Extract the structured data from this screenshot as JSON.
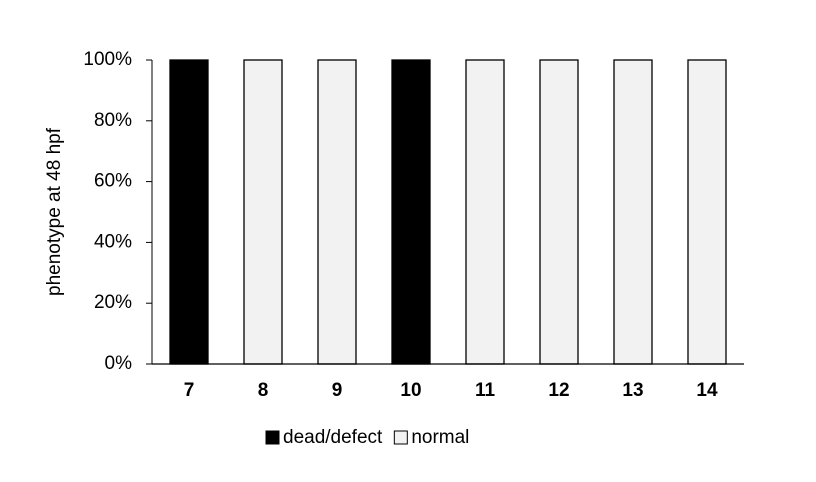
{
  "chart_data": {
    "type": "stacked_bar",
    "y_label": "phenotype at 48 hpf",
    "categories": [
      "7",
      "8",
      "9",
      "10",
      "11",
      "12",
      "13",
      "14"
    ],
    "series": [
      {
        "name": "dead/defect",
        "color": "#000000",
        "values": [
          100,
          0,
          0,
          100,
          0,
          0,
          0,
          0
        ]
      },
      {
        "name": "normal",
        "color": "#f2f2f2",
        "values": [
          0,
          100,
          100,
          0,
          100,
          100,
          100,
          100
        ]
      }
    ],
    "ylim": [
      0,
      100
    ],
    "yticks": [
      {
        "value": 0,
        "label": "0%"
      },
      {
        "value": 20,
        "label": "20%"
      },
      {
        "value": 40,
        "label": "40%"
      },
      {
        "value": 60,
        "label": "60%"
      },
      {
        "value": 80,
        "label": "80%"
      },
      {
        "value": 100,
        "label": "100%"
      }
    ],
    "legend": "bottom"
  }
}
